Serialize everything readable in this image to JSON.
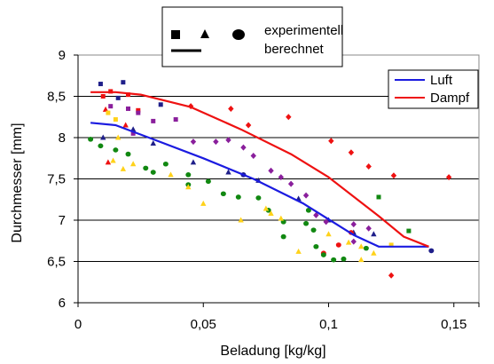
{
  "chart_data": {
    "type": "scatter",
    "xlabel": "Beladung [kg/kg]",
    "ylabel": "Durchmesser [mm]",
    "xlim": [
      0,
      0.16
    ],
    "ylim": [
      6,
      9
    ],
    "x_ticks": [
      "0",
      "0,05",
      "0,1",
      "0,15"
    ],
    "y_ticks": [
      "6",
      "6,5",
      "7",
      "7,5",
      "8",
      "8,5",
      "9"
    ],
    "grid": "horizontal",
    "marker_legend": {
      "markers": [
        "square",
        "triangle",
        "circle"
      ],
      "line": "solid",
      "labels": [
        "experimentell",
        "berechnet"
      ],
      "placement": "top-center"
    },
    "line_legend": {
      "placement": "top-right",
      "entries": [
        {
          "label": "Luft",
          "color": "#1b1be0"
        },
        {
          "label": "Dampf",
          "color": "#ee1111"
        }
      ]
    },
    "lines": [
      {
        "name": "Luft",
        "color": "#1b1be0",
        "x": [
          0.005,
          0.015,
          0.03,
          0.05,
          0.07,
          0.09,
          0.11,
          0.12,
          0.14
        ],
        "y": [
          8.18,
          8.15,
          7.98,
          7.75,
          7.5,
          7.2,
          6.82,
          6.68,
          6.68
        ]
      },
      {
        "name": "Dampf",
        "color": "#ee1111",
        "x": [
          0.005,
          0.015,
          0.025,
          0.045,
          0.065,
          0.085,
          0.1,
          0.12,
          0.13,
          0.14
        ],
        "y": [
          8.55,
          8.55,
          8.52,
          8.37,
          8.1,
          7.8,
          7.52,
          7.05,
          6.8,
          6.68
        ]
      }
    ],
    "scatter_series": [
      {
        "color": "#1f1f8a",
        "points": [
          {
            "x": 0.009,
            "y": 8.65,
            "m": "square"
          },
          {
            "x": 0.018,
            "y": 8.67,
            "m": "square"
          },
          {
            "x": 0.016,
            "y": 8.48,
            "m": "square"
          },
          {
            "x": 0.033,
            "y": 8.4,
            "m": "square"
          },
          {
            "x": 0.01,
            "y": 8.0,
            "m": "triangle"
          },
          {
            "x": 0.022,
            "y": 8.1,
            "m": "triangle"
          },
          {
            "x": 0.03,
            "y": 7.93,
            "m": "triangle"
          },
          {
            "x": 0.046,
            "y": 7.7,
            "m": "triangle"
          },
          {
            "x": 0.06,
            "y": 7.58,
            "m": "triangle"
          },
          {
            "x": 0.072,
            "y": 7.48,
            "m": "triangle"
          },
          {
            "x": 0.088,
            "y": 7.26,
            "m": "triangle"
          },
          {
            "x": 0.1,
            "y": 7.0,
            "m": "triangle"
          },
          {
            "x": 0.11,
            "y": 6.85,
            "m": "triangle"
          },
          {
            "x": 0.118,
            "y": 6.83,
            "m": "triangle"
          },
          {
            "x": 0.141,
            "y": 6.63,
            "m": "circle"
          },
          {
            "x": 0.066,
            "y": 7.55,
            "m": "circle"
          }
        ]
      },
      {
        "color": "#ee1111",
        "points": [
          {
            "x": 0.01,
            "y": 8.5,
            "m": "square"
          },
          {
            "x": 0.013,
            "y": 8.56,
            "m": "square"
          },
          {
            "x": 0.02,
            "y": 8.52,
            "m": "square"
          },
          {
            "x": 0.024,
            "y": 8.33,
            "m": "square"
          },
          {
            "x": 0.011,
            "y": 8.34,
            "m": "triangle"
          },
          {
            "x": 0.019,
            "y": 8.15,
            "m": "triangle"
          },
          {
            "x": 0.012,
            "y": 7.7,
            "m": "triangle"
          },
          {
            "x": 0.045,
            "y": 8.38,
            "m": "diamond"
          },
          {
            "x": 0.061,
            "y": 8.35,
            "m": "diamond"
          },
          {
            "x": 0.068,
            "y": 8.15,
            "m": "diamond"
          },
          {
            "x": 0.084,
            "y": 8.25,
            "m": "diamond"
          },
          {
            "x": 0.101,
            "y": 7.96,
            "m": "diamond"
          },
          {
            "x": 0.109,
            "y": 7.82,
            "m": "diamond"
          },
          {
            "x": 0.116,
            "y": 7.65,
            "m": "diamond"
          },
          {
            "x": 0.126,
            "y": 7.54,
            "m": "diamond"
          },
          {
            "x": 0.148,
            "y": 7.52,
            "m": "diamond"
          },
          {
            "x": 0.125,
            "y": 6.33,
            "m": "diamond"
          },
          {
            "x": 0.109,
            "y": 6.85,
            "m": "circle"
          },
          {
            "x": 0.104,
            "y": 6.7,
            "m": "circle"
          },
          {
            "x": 0.098,
            "y": 6.6,
            "m": "circle"
          }
        ]
      },
      {
        "color": "#118811",
        "points": [
          {
            "x": 0.005,
            "y": 7.98,
            "m": "circle"
          },
          {
            "x": 0.009,
            "y": 7.9,
            "m": "circle"
          },
          {
            "x": 0.015,
            "y": 7.85,
            "m": "circle"
          },
          {
            "x": 0.02,
            "y": 7.8,
            "m": "circle"
          },
          {
            "x": 0.027,
            "y": 7.63,
            "m": "circle"
          },
          {
            "x": 0.03,
            "y": 7.58,
            "m": "circle"
          },
          {
            "x": 0.035,
            "y": 7.68,
            "m": "circle"
          },
          {
            "x": 0.044,
            "y": 7.55,
            "m": "circle"
          },
          {
            "x": 0.044,
            "y": 7.43,
            "m": "circle"
          },
          {
            "x": 0.052,
            "y": 7.47,
            "m": "circle"
          },
          {
            "x": 0.058,
            "y": 7.32,
            "m": "circle"
          },
          {
            "x": 0.064,
            "y": 7.28,
            "m": "circle"
          },
          {
            "x": 0.072,
            "y": 7.27,
            "m": "circle"
          },
          {
            "x": 0.076,
            "y": 7.12,
            "m": "circle"
          },
          {
            "x": 0.082,
            "y": 6.98,
            "m": "circle"
          },
          {
            "x": 0.092,
            "y": 7.12,
            "m": "circle"
          },
          {
            "x": 0.094,
            "y": 6.88,
            "m": "circle"
          },
          {
            "x": 0.082,
            "y": 6.8,
            "m": "circle"
          },
          {
            "x": 0.095,
            "y": 6.68,
            "m": "circle"
          },
          {
            "x": 0.098,
            "y": 6.58,
            "m": "circle"
          },
          {
            "x": 0.102,
            "y": 6.52,
            "m": "circle"
          },
          {
            "x": 0.106,
            "y": 6.53,
            "m": "circle"
          },
          {
            "x": 0.091,
            "y": 6.96,
            "m": "circle"
          },
          {
            "x": 0.115,
            "y": 6.66,
            "m": "circle"
          },
          {
            "x": 0.12,
            "y": 7.28,
            "m": "square"
          },
          {
            "x": 0.132,
            "y": 6.87,
            "m": "square"
          }
        ]
      },
      {
        "color": "#ffd21a",
        "points": [
          {
            "x": 0.012,
            "y": 8.3,
            "m": "square"
          },
          {
            "x": 0.015,
            "y": 8.22,
            "m": "square"
          },
          {
            "x": 0.016,
            "y": 8.0,
            "m": "triangle"
          },
          {
            "x": 0.014,
            "y": 7.72,
            "m": "triangle"
          },
          {
            "x": 0.022,
            "y": 7.68,
            "m": "triangle"
          },
          {
            "x": 0.018,
            "y": 7.62,
            "m": "triangle"
          },
          {
            "x": 0.037,
            "y": 7.55,
            "m": "triangle"
          },
          {
            "x": 0.044,
            "y": 7.4,
            "m": "triangle"
          },
          {
            "x": 0.05,
            "y": 7.2,
            "m": "triangle"
          },
          {
            "x": 0.065,
            "y": 7.0,
            "m": "triangle"
          },
          {
            "x": 0.075,
            "y": 7.14,
            "m": "triangle"
          },
          {
            "x": 0.077,
            "y": 7.08,
            "m": "triangle"
          },
          {
            "x": 0.081,
            "y": 7.02,
            "m": "triangle"
          },
          {
            "x": 0.088,
            "y": 6.62,
            "m": "triangle"
          },
          {
            "x": 0.1,
            "y": 6.83,
            "m": "triangle"
          },
          {
            "x": 0.108,
            "y": 6.73,
            "m": "triangle"
          },
          {
            "x": 0.113,
            "y": 6.68,
            "m": "triangle"
          },
          {
            "x": 0.113,
            "y": 6.52,
            "m": "triangle"
          },
          {
            "x": 0.118,
            "y": 6.6,
            "m": "triangle"
          },
          {
            "x": 0.125,
            "y": 6.7,
            "m": "square"
          }
        ]
      },
      {
        "color": "#8a1f9c",
        "points": [
          {
            "x": 0.013,
            "y": 8.38,
            "m": "square"
          },
          {
            "x": 0.02,
            "y": 8.35,
            "m": "square"
          },
          {
            "x": 0.024,
            "y": 8.3,
            "m": "square"
          },
          {
            "x": 0.039,
            "y": 8.22,
            "m": "square"
          },
          {
            "x": 0.022,
            "y": 8.05,
            "m": "square"
          },
          {
            "x": 0.03,
            "y": 8.2,
            "m": "square"
          },
          {
            "x": 0.046,
            "y": 7.95,
            "m": "diamond"
          },
          {
            "x": 0.055,
            "y": 7.95,
            "m": "diamond"
          },
          {
            "x": 0.06,
            "y": 7.97,
            "m": "diamond"
          },
          {
            "x": 0.066,
            "y": 7.88,
            "m": "diamond"
          },
          {
            "x": 0.07,
            "y": 7.78,
            "m": "diamond"
          },
          {
            "x": 0.077,
            "y": 7.6,
            "m": "diamond"
          },
          {
            "x": 0.081,
            "y": 7.52,
            "m": "diamond"
          },
          {
            "x": 0.085,
            "y": 7.44,
            "m": "diamond"
          },
          {
            "x": 0.091,
            "y": 7.3,
            "m": "diamond"
          },
          {
            "x": 0.095,
            "y": 7.06,
            "m": "diamond"
          },
          {
            "x": 0.099,
            "y": 6.98,
            "m": "diamond"
          },
          {
            "x": 0.11,
            "y": 6.95,
            "m": "diamond"
          },
          {
            "x": 0.116,
            "y": 6.9,
            "m": "diamond"
          },
          {
            "x": 0.11,
            "y": 6.74,
            "m": "diamond"
          }
        ]
      }
    ]
  }
}
